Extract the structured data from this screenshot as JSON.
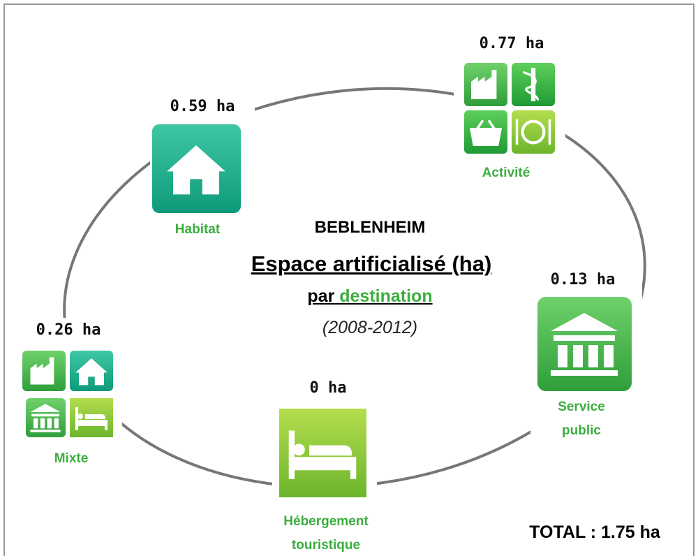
{
  "title": {
    "place": "BEBLENHEIM",
    "main": "Espace artificialisé (ha)",
    "prefix": "par",
    "word": "destination",
    "period": "(2008-2012)"
  },
  "total": "TOTAL : 1.75 ha",
  "nodes": [
    {
      "label": "Habitat",
      "value": "0.59 ha"
    },
    {
      "label": "Activité",
      "value": "0.77 ha"
    },
    {
      "label": "Service public",
      "value": "0.13 ha"
    },
    {
      "label": "Hébergement touristique",
      "value": "0 ha"
    },
    {
      "label": "Mixte",
      "value": "0.26 ha"
    }
  ]
}
